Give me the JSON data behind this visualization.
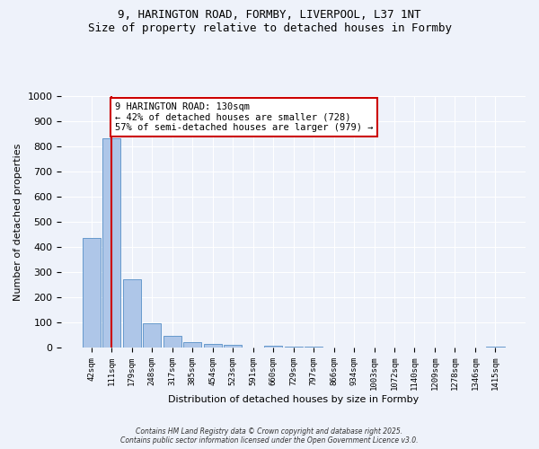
{
  "title_line1": "9, HARINGTON ROAD, FORMBY, LIVERPOOL, L37 1NT",
  "title_line2": "Size of property relative to detached houses in Formby",
  "xlabel": "Distribution of detached houses by size in Formby",
  "ylabel": "Number of detached properties",
  "bar_values": [
    435,
    833,
    270,
    97,
    46,
    23,
    16,
    10,
    0,
    9,
    5,
    3,
    2,
    1,
    1,
    1,
    0,
    0,
    0,
    0,
    5
  ],
  "categories": [
    "42sqm",
    "111sqm",
    "179sqm",
    "248sqm",
    "317sqm",
    "385sqm",
    "454sqm",
    "523sqm",
    "591sqm",
    "660sqm",
    "729sqm",
    "797sqm",
    "866sqm",
    "934sqm",
    "1003sqm",
    "1072sqm",
    "1140sqm",
    "1209sqm",
    "1278sqm",
    "1346sqm",
    "1415sqm"
  ],
  "bar_color": "#aec6e8",
  "bar_edge_color": "#6699cc",
  "vline_x": 1,
  "vline_color": "#cc0000",
  "annotation_text": "9 HARINGTON ROAD: 130sqm\n← 42% of detached houses are smaller (728)\n57% of semi-detached houses are larger (979) →",
  "annotation_box_color": "#ffffff",
  "annotation_box_edge": "#cc0000",
  "ylim": [
    0,
    1000
  ],
  "yticks": [
    0,
    100,
    200,
    300,
    400,
    500,
    600,
    700,
    800,
    900,
    1000
  ],
  "background_color": "#eef2fa",
  "footer_line1": "Contains HM Land Registry data © Crown copyright and database right 2025.",
  "footer_line2": "Contains public sector information licensed under the Open Government Licence v3.0."
}
